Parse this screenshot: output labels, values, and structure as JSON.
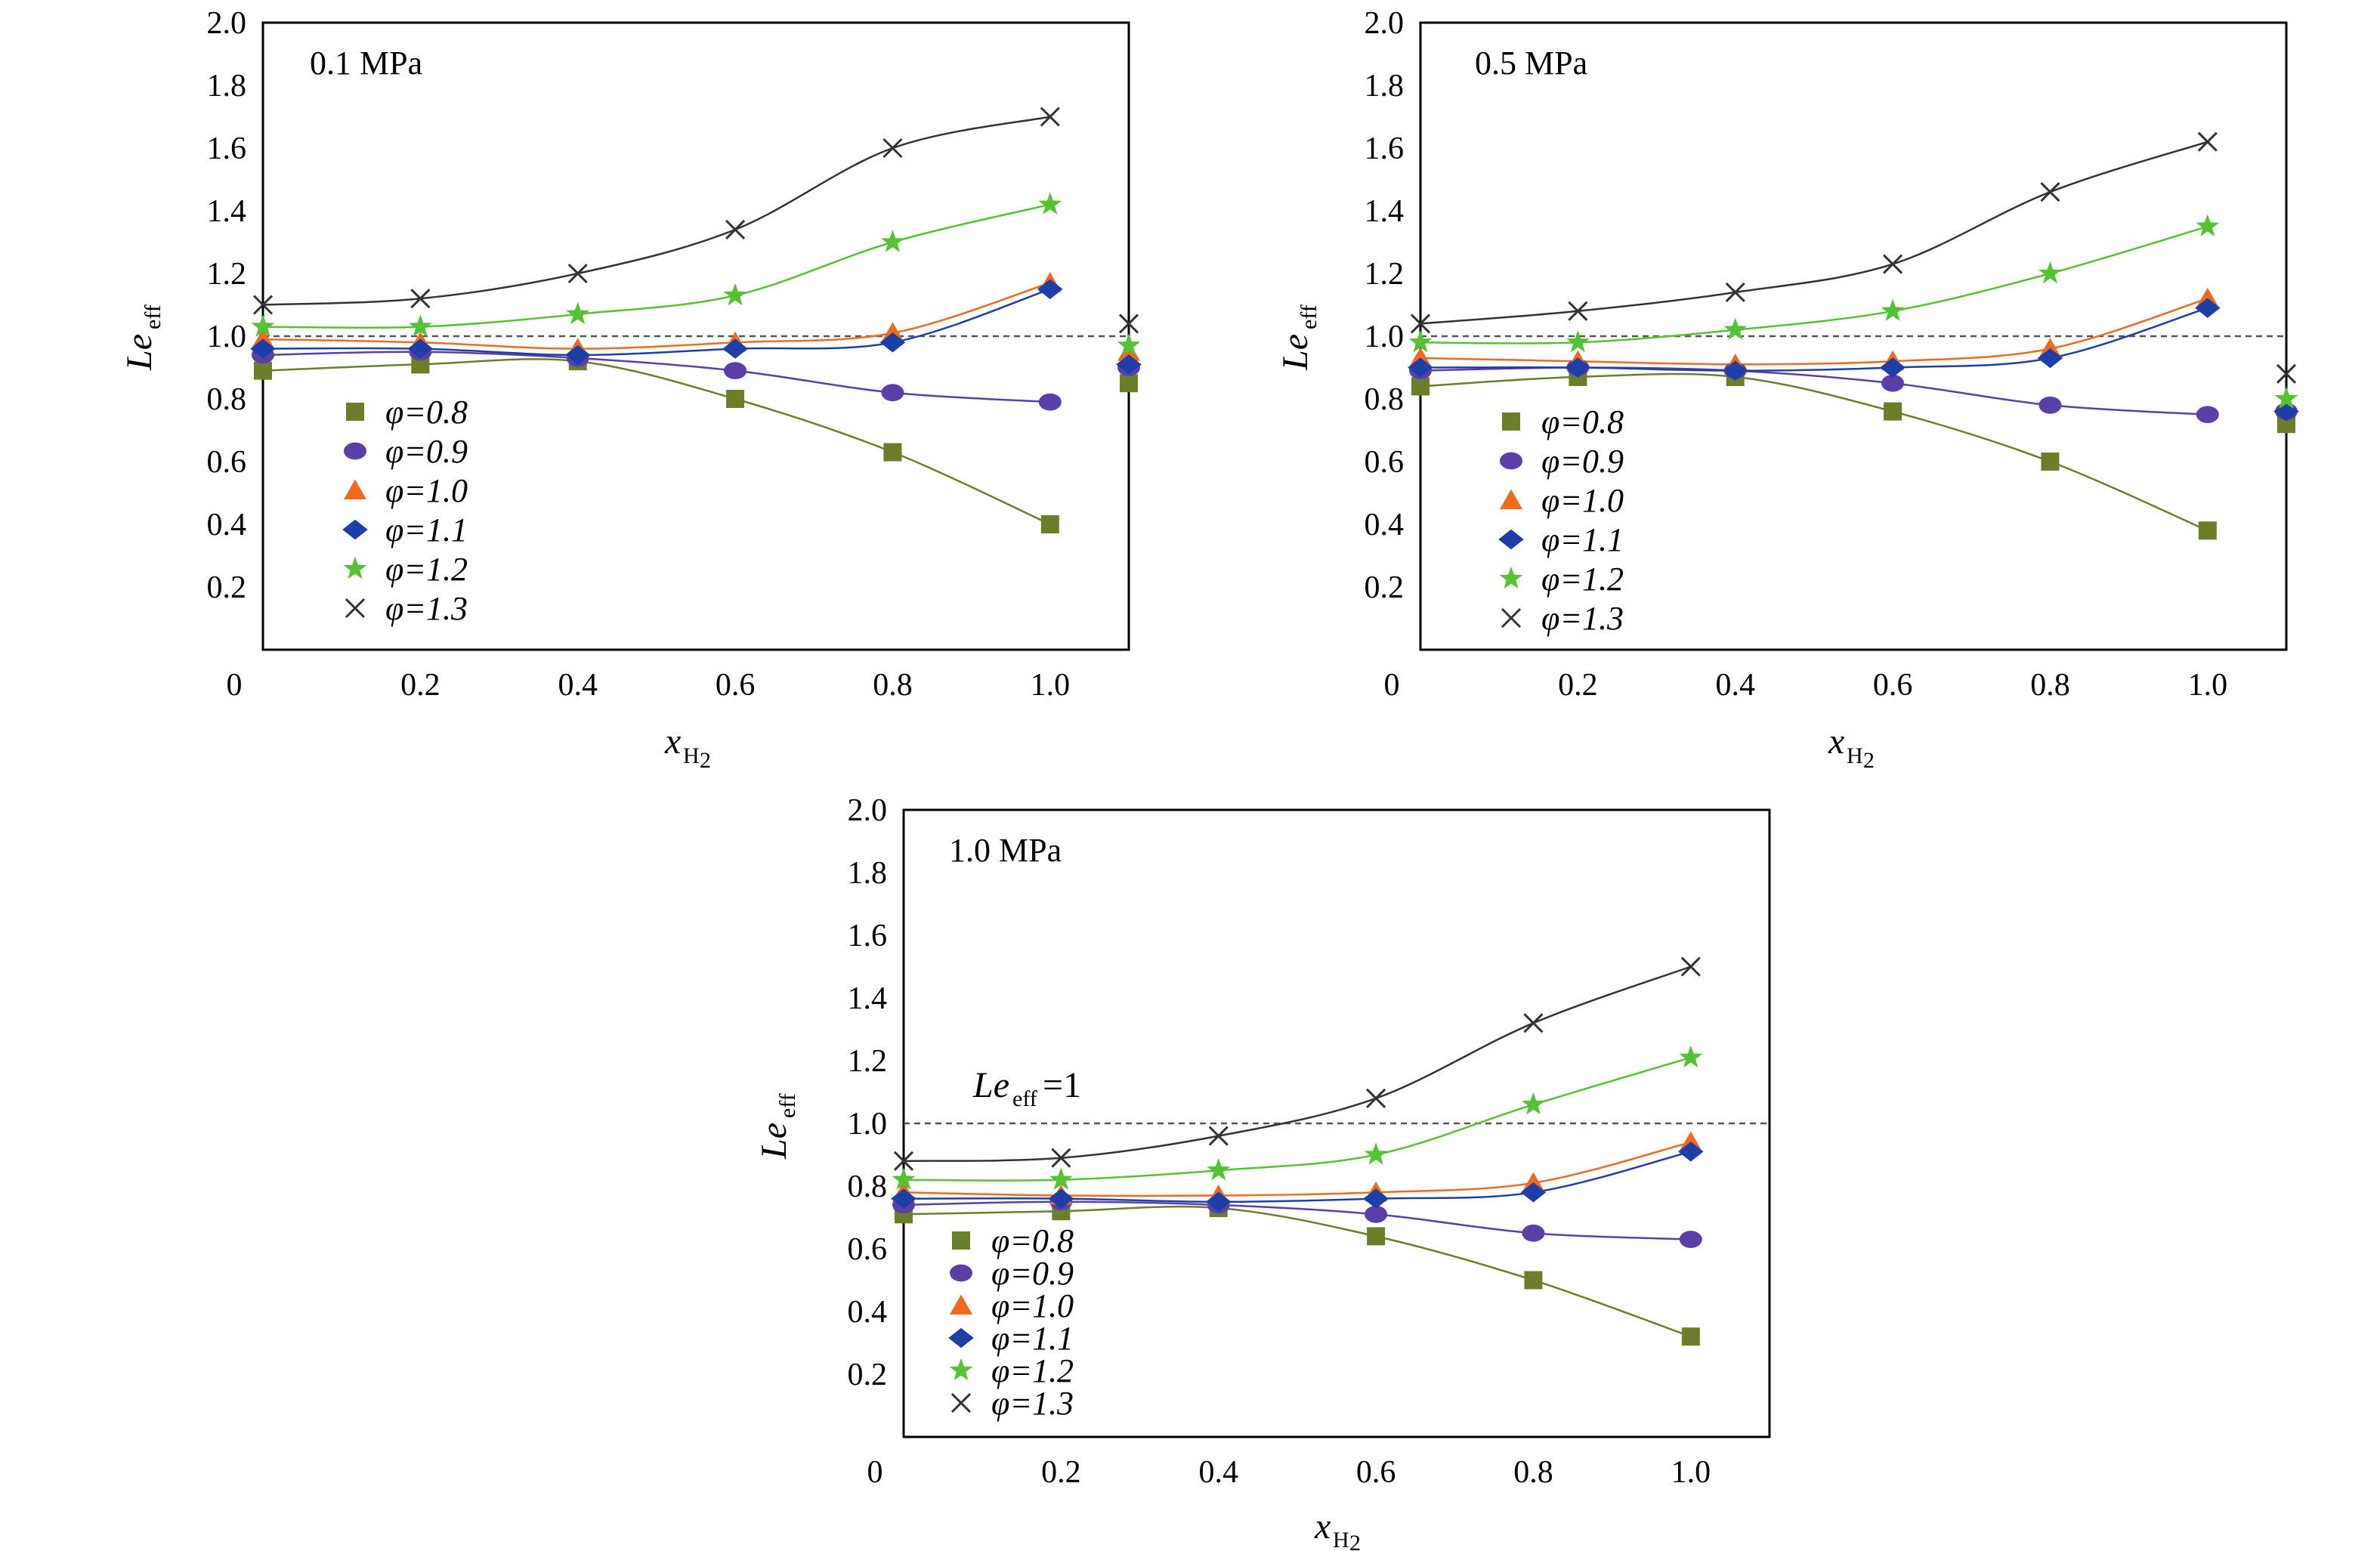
{
  "chart_data": [
    {
      "type": "scatter",
      "panel_label": "0.1 MPa",
      "xlabel": "x",
      "xlabel_sub": "H",
      "xlabel_subsub": "2",
      "ylabel": "Le",
      "ylabel_sub": "eff",
      "xlim": [
        0,
        1.1
      ],
      "ylim": [
        0,
        2.0
      ],
      "x_ticks": [
        "0",
        "0.2",
        "0.4",
        "0.6",
        "0.8",
        "1.0"
      ],
      "y_ticks": [
        "0.2",
        "0.4",
        "0.6",
        "0.8",
        "1.0",
        "1.2",
        "1.4",
        "1.6",
        "1.8",
        "2.0"
      ],
      "reference_line": {
        "y": 1.0,
        "label": ""
      },
      "legend_placement": "lower-left",
      "series": [
        {
          "name": "φ=0.8",
          "marker": "square",
          "color": "#6b7f2a",
          "x": [
            0,
            0.2,
            0.4,
            0.6,
            0.8,
            1.0,
            1.1
          ],
          "y": [
            0.89,
            0.91,
            0.92,
            0.8,
            0.63,
            0.4,
            0.85
          ]
        },
        {
          "name": "φ=0.9",
          "marker": "circle",
          "color": "#5a3fa8",
          "x": [
            0,
            0.2,
            0.4,
            0.6,
            0.8,
            1.0,
            1.1
          ],
          "y": [
            0.94,
            0.95,
            0.93,
            0.89,
            0.82,
            0.79,
            0.9
          ]
        },
        {
          "name": "φ=1.0",
          "marker": "triangle",
          "color": "#ef6a1f",
          "x": [
            0,
            0.2,
            0.4,
            0.6,
            0.8,
            1.0,
            1.1
          ],
          "y": [
            0.99,
            0.98,
            0.96,
            0.98,
            1.01,
            1.17,
            0.95
          ]
        },
        {
          "name": "φ=1.1",
          "marker": "diamond",
          "color": "#1f3fa8",
          "x": [
            0,
            0.2,
            0.4,
            0.6,
            0.8,
            1.0,
            1.1
          ],
          "y": [
            0.96,
            0.96,
            0.94,
            0.96,
            0.98,
            1.15,
            0.91
          ]
        },
        {
          "name": "φ=1.2",
          "marker": "star",
          "color": "#55c233",
          "x": [
            0,
            0.2,
            0.4,
            0.6,
            0.8,
            1.0,
            1.1
          ],
          "y": [
            1.03,
            1.03,
            1.07,
            1.13,
            1.3,
            1.42,
            0.97
          ]
        },
        {
          "name": "φ=1.3",
          "marker": "cross",
          "color": "#333333",
          "x": [
            0,
            0.2,
            0.4,
            0.6,
            0.8,
            1.0,
            1.1
          ],
          "y": [
            1.1,
            1.12,
            1.2,
            1.34,
            1.6,
            1.7,
            1.04
          ]
        }
      ]
    },
    {
      "type": "scatter",
      "panel_label": "0.5 MPa",
      "xlabel": "x",
      "xlabel_sub": "H",
      "xlabel_subsub": "2",
      "ylabel": "Le",
      "ylabel_sub": "eff",
      "xlim": [
        0,
        1.1
      ],
      "ylim": [
        0,
        2.0
      ],
      "x_ticks": [
        "0",
        "0.2",
        "0.4",
        "0.6",
        "0.8",
        "1.0"
      ],
      "y_ticks": [
        "0.2",
        "0.4",
        "0.6",
        "0.8",
        "1.0",
        "1.2",
        "1.4",
        "1.6",
        "1.8",
        "2.0"
      ],
      "reference_line": {
        "y": 1.0,
        "label": ""
      },
      "legend_placement": "lower-left",
      "series": [
        {
          "name": "φ=0.8",
          "marker": "square",
          "color": "#6b7f2a",
          "x": [
            0,
            0.2,
            0.4,
            0.6,
            0.8,
            1.0,
            1.1
          ],
          "y": [
            0.84,
            0.87,
            0.87,
            0.76,
            0.6,
            0.38,
            0.72
          ]
        },
        {
          "name": "φ=0.9",
          "marker": "circle",
          "color": "#5a3fa8",
          "x": [
            0,
            0.2,
            0.4,
            0.6,
            0.8,
            1.0,
            1.1
          ],
          "y": [
            0.89,
            0.9,
            0.89,
            0.85,
            0.78,
            0.75,
            0.76
          ]
        },
        {
          "name": "φ=1.0",
          "marker": "triangle",
          "color": "#ef6a1f",
          "x": [
            0,
            0.2,
            0.4,
            0.6,
            0.8,
            1.0,
            1.1
          ],
          "y": [
            0.93,
            0.92,
            0.91,
            0.92,
            0.96,
            1.12,
            0.78
          ]
        },
        {
          "name": "φ=1.1",
          "marker": "diamond",
          "color": "#1f3fa8",
          "x": [
            0,
            0.2,
            0.4,
            0.6,
            0.8,
            1.0,
            1.1
          ],
          "y": [
            0.9,
            0.9,
            0.89,
            0.9,
            0.93,
            1.09,
            0.76
          ]
        },
        {
          "name": "φ=1.2",
          "marker": "star",
          "color": "#55c233",
          "x": [
            0,
            0.2,
            0.4,
            0.6,
            0.8,
            1.0,
            1.1
          ],
          "y": [
            0.98,
            0.98,
            1.02,
            1.08,
            1.2,
            1.35,
            0.8
          ]
        },
        {
          "name": "φ=1.3",
          "marker": "cross",
          "color": "#333333",
          "x": [
            0,
            0.2,
            0.4,
            0.6,
            0.8,
            1.0,
            1.1
          ],
          "y": [
            1.04,
            1.08,
            1.14,
            1.23,
            1.46,
            1.62,
            0.88
          ]
        }
      ]
    },
    {
      "type": "scatter",
      "panel_label": "1.0 MPa",
      "xlabel": "x",
      "xlabel_sub": "H",
      "xlabel_subsub": "2",
      "ylabel": "Le",
      "ylabel_sub": "eff",
      "xlim": [
        0,
        1.1
      ],
      "ylim": [
        0,
        2.0
      ],
      "x_ticks": [
        "0",
        "0.2",
        "0.4",
        "0.6",
        "0.8",
        "1.0"
      ],
      "y_ticks": [
        "0.2",
        "0.4",
        "0.6",
        "0.8",
        "1.0",
        "1.2",
        "1.4",
        "1.6",
        "1.8",
        "2.0"
      ],
      "reference_line": {
        "y": 1.0,
        "label": "Le",
        "label_sub": "eff",
        "label_suffix": "=1"
      },
      "legend_placement": "lower-left",
      "series": [
        {
          "name": "φ=0.8",
          "marker": "square",
          "color": "#6b7f2a",
          "x": [
            0,
            0.2,
            0.4,
            0.6,
            0.8,
            1.0
          ],
          "y": [
            0.71,
            0.72,
            0.73,
            0.64,
            0.5,
            0.32
          ]
        },
        {
          "name": "φ=0.9",
          "marker": "circle",
          "color": "#5a3fa8",
          "x": [
            0,
            0.2,
            0.4,
            0.6,
            0.8,
            1.0
          ],
          "y": [
            0.74,
            0.75,
            0.74,
            0.71,
            0.65,
            0.63
          ]
        },
        {
          "name": "φ=1.0",
          "marker": "triangle",
          "color": "#ef6a1f",
          "x": [
            0,
            0.2,
            0.4,
            0.6,
            0.8,
            1.0
          ],
          "y": [
            0.78,
            0.77,
            0.77,
            0.78,
            0.81,
            0.94
          ]
        },
        {
          "name": "φ=1.1",
          "marker": "diamond",
          "color": "#1f3fa8",
          "x": [
            0,
            0.2,
            0.4,
            0.6,
            0.8,
            1.0
          ],
          "y": [
            0.76,
            0.76,
            0.75,
            0.76,
            0.78,
            0.91
          ]
        },
        {
          "name": "φ=1.2",
          "marker": "star",
          "color": "#55c233",
          "x": [
            0,
            0.2,
            0.4,
            0.6,
            0.8,
            1.0
          ],
          "y": [
            0.82,
            0.82,
            0.85,
            0.9,
            1.06,
            1.21
          ]
        },
        {
          "name": "φ=1.3",
          "marker": "cross",
          "color": "#333333",
          "x": [
            0,
            0.2,
            0.4,
            0.6,
            0.8,
            1.0
          ],
          "y": [
            0.88,
            0.89,
            0.96,
            1.08,
            1.32,
            1.5
          ]
        }
      ]
    }
  ]
}
